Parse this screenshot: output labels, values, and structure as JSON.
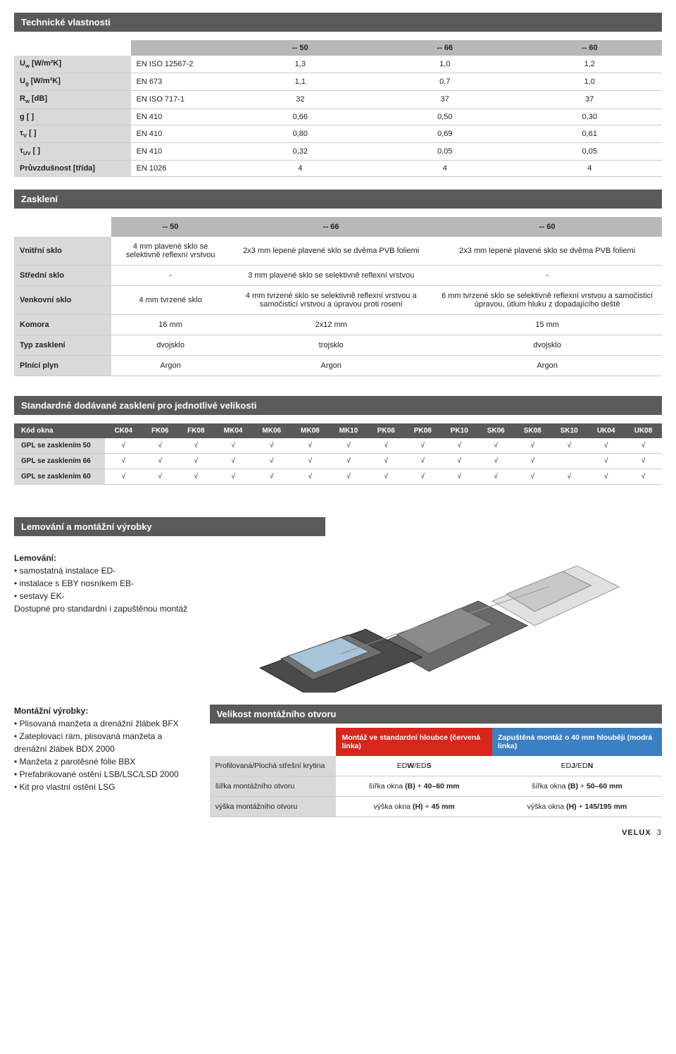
{
  "sections": {
    "tech": "Technické vlastnosti",
    "zask": "Zasklení",
    "sizes": "Standardně dodávané zasklení pro jednotlivé velikosti",
    "lem": "Lemování a montážní výrobky",
    "mont": "Velikost montážního otvoru"
  },
  "tech": {
    "heads": [
      "-- 50",
      "-- 66",
      "-- 60"
    ],
    "rows": [
      {
        "p": "U<sub>w</sub> [W/m²K]",
        "s": "EN ISO 12567-2",
        "v": [
          "1,3",
          "1,0",
          "1,2"
        ]
      },
      {
        "p": "U<sub>g</sub> [W/m²K]",
        "s": "EN 673",
        "v": [
          "1,1",
          "0,7",
          "1,0"
        ]
      },
      {
        "p": "R<sub>w</sub> [dB]",
        "s": "EN ISO 717-1",
        "v": [
          "32",
          "37",
          "37"
        ]
      },
      {
        "p": "g [ ]",
        "s": "EN 410",
        "v": [
          "0,66",
          "0,50",
          "0,30"
        ]
      },
      {
        "p": "τ<sub>V</sub> [ ]",
        "s": "EN 410",
        "v": [
          "0,80",
          "0,69",
          "0,61"
        ]
      },
      {
        "p": "τ<sub>UV</sub> [ ]",
        "s": "EN 410",
        "v": [
          "0,32",
          "0,05",
          "0,05"
        ]
      },
      {
        "p": "Průvzdušnost [třída]",
        "s": "EN 1026",
        "v": [
          "4",
          "4",
          "4"
        ]
      }
    ]
  },
  "zask": {
    "heads": [
      "-- 50",
      "-- 66",
      "-- 60"
    ],
    "rows": [
      {
        "l": "Vnitřní sklo",
        "c": [
          "4 mm plavené sklo se selektivně reflexní vrstvou",
          "2x3 mm lepené plavené sklo se dvěma PVB foliemi",
          "2x3 mm lepené plavené sklo se dvěma PVB foliemi"
        ]
      },
      {
        "l": "Střední sklo",
        "c": [
          "-",
          "3 mm plavené sklo se selektivně reflexní vrstvou",
          "-"
        ]
      },
      {
        "l": "Venkovní sklo",
        "c": [
          "4 mm tvrzené sklo",
          "4 mm tvrzené sklo se selektivně reflexní vrstvou a samočisticí vrstvou a úpravou proti rosení",
          "6 mm tvrzené sklo se selektivně reflexní vrstvou a samočisticí úpravou, útlum hluku z dopadajícího deště"
        ]
      },
      {
        "l": "Komora",
        "c": [
          "16 mm",
          "2x12 mm",
          "15 mm"
        ]
      },
      {
        "l": "Typ zasklení",
        "c": [
          "dvojsklo",
          "trojsklo",
          "dvojsklo"
        ]
      },
      {
        "l": "Plnící plyn",
        "c": [
          "Argon",
          "Argon",
          "Argon"
        ]
      }
    ]
  },
  "sizes": {
    "head": "Kód okna",
    "cols": [
      "CK04",
      "FK06",
      "FK08",
      "MK04",
      "MK06",
      "MK08",
      "MK10",
      "PK06",
      "PK08",
      "PK10",
      "SK06",
      "SK08",
      "SK10",
      "UK04",
      "UK08"
    ],
    "rows": [
      {
        "l": "GPL se zasklením 50",
        "v": [
          1,
          1,
          1,
          1,
          1,
          1,
          1,
          1,
          1,
          1,
          1,
          1,
          1,
          1,
          1
        ]
      },
      {
        "l": "GPL se zasklením 66",
        "v": [
          1,
          1,
          1,
          1,
          1,
          1,
          1,
          1,
          1,
          1,
          1,
          1,
          0,
          1,
          1
        ]
      },
      {
        "l": "GPL se zasklením 60",
        "v": [
          1,
          1,
          1,
          1,
          1,
          1,
          1,
          1,
          1,
          1,
          1,
          1,
          1,
          1,
          1
        ]
      }
    ],
    "mark": "√"
  },
  "lem": {
    "title": "Lemování:",
    "items": [
      "samostatná instalace ED-",
      "instalace s EBY nosníkem EB-",
      "sestavy EK-"
    ],
    "note": "Dostupné pro standardní i zapuštěnou montáž"
  },
  "montProd": {
    "title": "Montážní výrobky:",
    "items": [
      "Plisovaná manžeta a drenážní žlábek BFX",
      "Zateplovací rám, plisovaná manžeta a drenážní žlábek BDX 2000",
      "Manžeta z parotěsné fólie BBX",
      "Prefabrikované ostění LSB/LSC/LSD 2000",
      "Kit pro vlastní ostění LSG"
    ]
  },
  "montTbl": {
    "h1": "Montáž ve standardní hloubce (červená linka)",
    "h2": "Zapuštěná montáž o 40 mm hlouběji (modrá linka)",
    "rows": [
      {
        "l": "Profilovaná/Plochá střešní krytina",
        "a": "ED<b>W</b>/ED<b>S</b>",
        "b": "ED<b>J</b>/ED<b>N</b>"
      },
      {
        "l": "šířka montážního otvoru",
        "a": "šířka okna <b>(B)</b> + <b>40–60 mm</b>",
        "b": "šířka okna <b>(B)</b> + <b>50–60 mm</b>"
      },
      {
        "l": "výška montážního otvoru",
        "a": "výška okna <b>(H)</b> + <b>45 mm</b>",
        "b": "výška okna <b>(H)</b> + <b>145/195 mm</b>"
      }
    ]
  },
  "footer": {
    "brand": "VELUX",
    "page": "3"
  },
  "colors": {
    "gray": "#5a5a5a",
    "lgray": "#d9d9d9",
    "mgray": "#b8b8b8",
    "red": "#d9261c",
    "blue": "#3b7fc4"
  }
}
